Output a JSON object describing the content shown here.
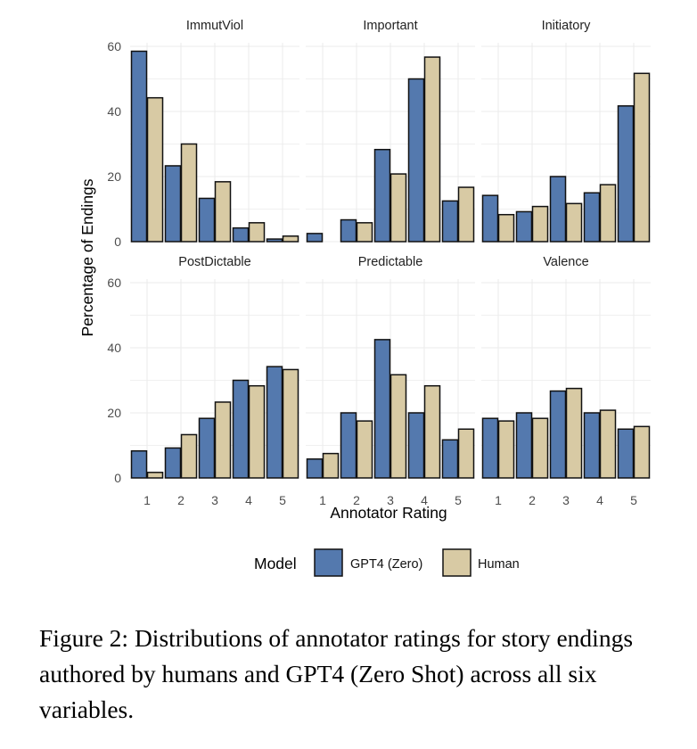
{
  "chart_data": {
    "type": "bar",
    "facets": [
      "ImmutViol",
      "Important",
      "Initiatory",
      "PostDictable",
      "Predictable",
      "Valence"
    ],
    "categories": [
      "1",
      "2",
      "3",
      "4",
      "5"
    ],
    "xlabel": "Annotator Rating",
    "ylabel": "Percentage of Endings",
    "ylim": [
      0,
      60
    ],
    "yticks": [
      0,
      20,
      40,
      60
    ],
    "grid": true,
    "legend": {
      "title": "Model",
      "placement": "bottom",
      "entries": [
        "GPT4 (Zero)",
        "Human"
      ]
    },
    "colors": {
      "GPT4 (Zero)": "#5479ae",
      "Human": "#d8caa4"
    },
    "panels": [
      {
        "facet": "ImmutViol",
        "series": [
          {
            "name": "GPT4 (Zero)",
            "values": [
              58.5,
              23.3,
              13.3,
              4.2,
              0.8
            ]
          },
          {
            "name": "Human",
            "values": [
              44.2,
              30.0,
              18.4,
              5.8,
              1.7
            ]
          }
        ]
      },
      {
        "facet": "Important",
        "series": [
          {
            "name": "GPT4 (Zero)",
            "values": [
              2.5,
              6.7,
              28.3,
              50.0,
              12.5
            ]
          },
          {
            "name": "Human",
            "values": [
              0,
              5.8,
              20.8,
              56.7,
              16.7
            ]
          }
        ]
      },
      {
        "facet": "Initiatory",
        "series": [
          {
            "name": "GPT4 (Zero)",
            "values": [
              14.2,
              9.2,
              20.0,
              15.0,
              41.7
            ]
          },
          {
            "name": "Human",
            "values": [
              8.3,
              10.8,
              11.7,
              17.5,
              51.7
            ]
          }
        ]
      },
      {
        "facet": "PostDictable",
        "series": [
          {
            "name": "GPT4 (Zero)",
            "values": [
              8.3,
              9.2,
              18.3,
              30.0,
              34.2
            ]
          },
          {
            "name": "Human",
            "values": [
              1.7,
              13.3,
              23.3,
              28.3,
              33.3
            ]
          }
        ]
      },
      {
        "facet": "Predictable",
        "series": [
          {
            "name": "GPT4 (Zero)",
            "values": [
              5.8,
              20.0,
              42.5,
              20.0,
              11.7
            ]
          },
          {
            "name": "Human",
            "values": [
              7.5,
              17.5,
              31.7,
              28.3,
              15.0
            ]
          }
        ]
      },
      {
        "facet": "Valence",
        "series": [
          {
            "name": "GPT4 (Zero)",
            "values": [
              18.3,
              20.0,
              26.7,
              20.0,
              15.0
            ]
          },
          {
            "name": "Human",
            "values": [
              17.5,
              18.3,
              27.5,
              20.8,
              15.8
            ]
          }
        ]
      }
    ]
  },
  "caption": "Figure 2: Distributions of annotator ratings for story endings authored by humans and GPT4 (Zero Shot) across all six variables."
}
